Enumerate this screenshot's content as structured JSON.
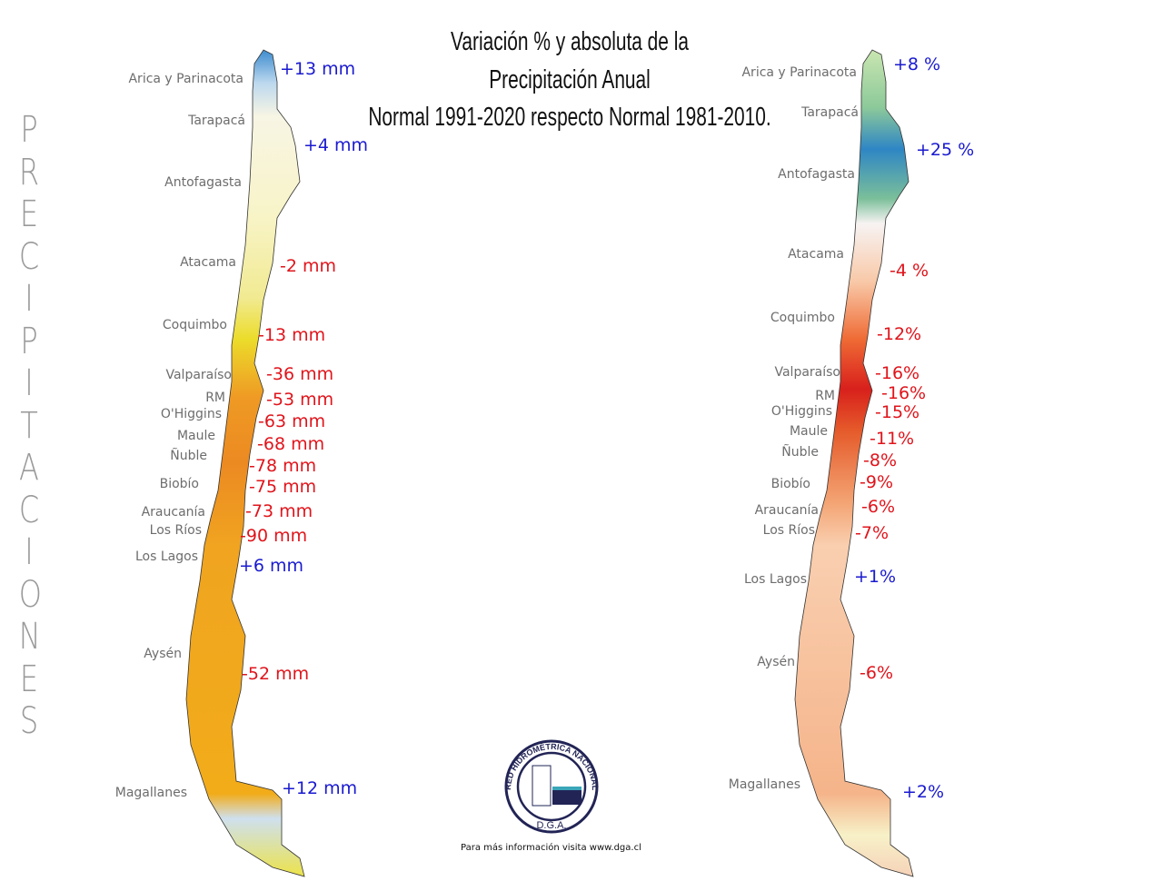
{
  "title": {
    "line1": "Variación % y absoluta de la",
    "line2": "Precipitación Anual",
    "line3": "Normal 1991-2020 respecto Normal 1981-2010."
  },
  "side_label": "PRECIPITACIONES",
  "regions": [
    "Arica y Parinacota",
    "Tarapacá",
    "Antofagasta",
    "Atacama",
    "Coquimbo",
    "Valparaíso",
    "RM",
    "O'Higgins",
    "Maule",
    "Ñuble",
    "Biobío",
    "Araucanía",
    "Los Ríos",
    "Los Lagos",
    "Aysén",
    "Magallanes"
  ],
  "absolute_map": {
    "values": [
      "+13 mm",
      "+4 mm",
      "-2 mm",
      "-13 mm",
      "-36 mm",
      "-53 mm",
      "-63 mm",
      "-68 mm",
      "-78 mm",
      "-75 mm",
      "-73 mm",
      "-90 mm",
      "+6 mm",
      "-52 mm",
      "+12 mm"
    ]
  },
  "percent_map": {
    "values": [
      "+8 %",
      "+25 %",
      "-4 %",
      "-12%",
      "-16%",
      "-16%",
      "-15%",
      "-11%",
      "-8%",
      "-9%",
      "-6%",
      "-7%",
      "+1%",
      "-6%",
      "+2%"
    ]
  },
  "logo": {
    "arc_text": "RED HIDROMÉTRICA NACIONAL",
    "org": "D.G.A."
  },
  "footer": "Para más información visita www.dga.cl",
  "colors": {
    "negative": "#e0141b",
    "positive": "#1a1ad0"
  }
}
